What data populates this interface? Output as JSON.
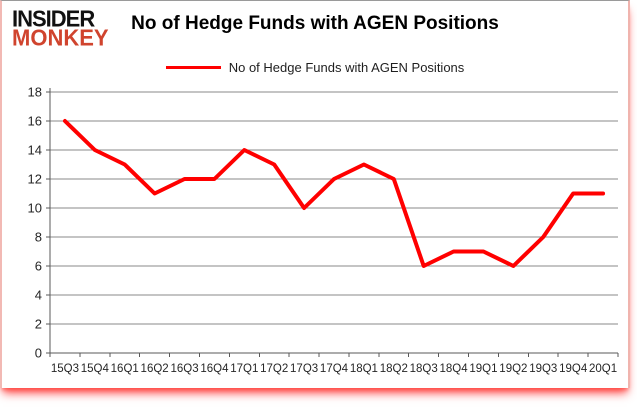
{
  "brand": {
    "line1": "INSIDER",
    "line2": "MONKEY",
    "accent_color": "#d0442e"
  },
  "header": {
    "title": "No of Hedge Funds with AGEN Positions"
  },
  "legend": {
    "label": "No of Hedge Funds with AGEN Positions",
    "line_color": "#ff0000"
  },
  "chart_data": {
    "type": "line",
    "title": "No of Hedge Funds with AGEN Positions",
    "categories": [
      "15Q3",
      "15Q4",
      "16Q1",
      "16Q2",
      "16Q3",
      "16Q4",
      "17Q1",
      "17Q2",
      "17Q3",
      "17Q4",
      "18Q1",
      "18Q2",
      "18Q3",
      "18Q4",
      "19Q1",
      "19Q2",
      "19Q3",
      "19Q4",
      "20Q1"
    ],
    "series": [
      {
        "name": "No of Hedge Funds with AGEN Positions",
        "color": "#ff0000",
        "values": [
          16,
          14,
          13,
          11,
          12,
          12,
          14,
          13,
          10,
          12,
          13,
          12,
          6,
          7,
          7,
          6,
          8,
          11,
          11
        ]
      }
    ],
    "xlabel": "",
    "ylabel": "",
    "ylim": [
      0,
      18
    ],
    "ytick_step": 2,
    "grid": "horizontal",
    "legend_position": "top"
  },
  "style": {
    "grid_color": "#8a8a8a",
    "axis_color": "#595959",
    "tick_label_color": "#262626",
    "line_width": 4
  }
}
